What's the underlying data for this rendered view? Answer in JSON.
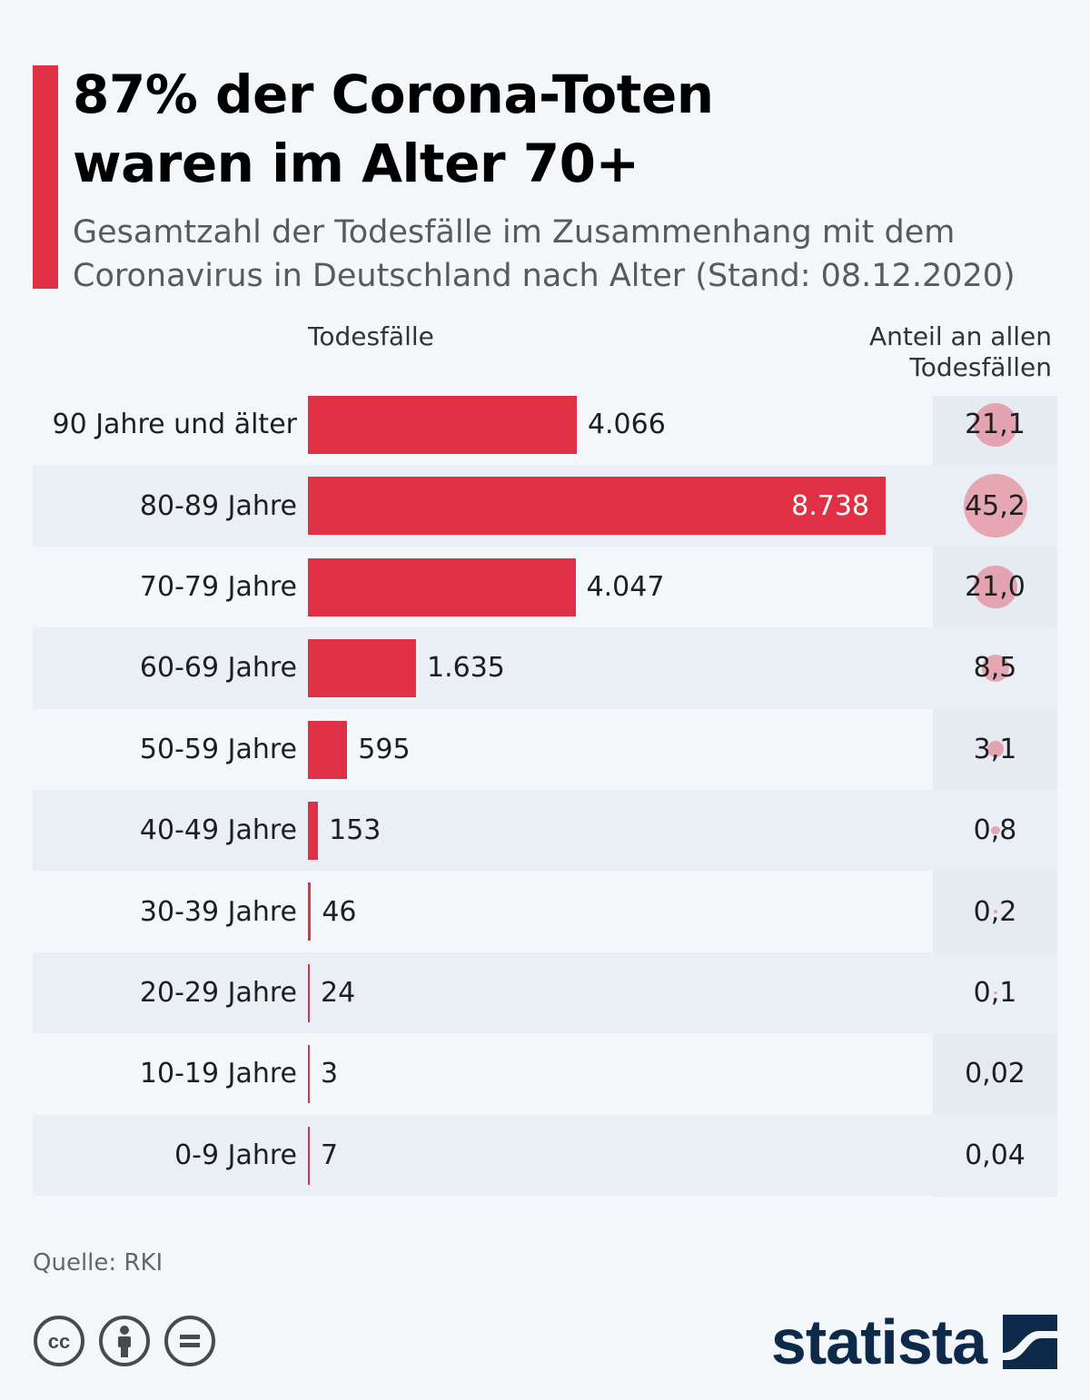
{
  "title_lines": [
    "87% der Corona-Toten",
    "waren im Alter 70+"
  ],
  "subtitle_lines": [
    "Gesamtzahl der Todesfälle im Zusammenhang mit dem",
    "Coronavirus in Deutschland nach Alter (Stand: 08.12.2020)"
  ],
  "columns": {
    "left": "Todesfälle",
    "right_lines": [
      "Anteil an allen",
      "Todesfällen"
    ]
  },
  "colors": {
    "accent": "#e03045",
    "bubble": "#e03045",
    "logo": "#0d2a4a"
  },
  "chart_data": {
    "type": "bar",
    "orientation": "horizontal",
    "title": "87% der Corona-Toten waren im Alter 70+",
    "subtitle": "Gesamtzahl der Todesfälle im Zusammenhang mit dem Coronavirus in Deutschland nach Alter (Stand: 08.12.2020)",
    "xlabel": "Todesfälle",
    "categories": [
      "90 Jahre und älter",
      "80-89 Jahre",
      "70-79 Jahre",
      "60-69 Jahre",
      "50-59 Jahre",
      "40-49 Jahre",
      "30-39 Jahre",
      "20-29 Jahre",
      "10-19 Jahre",
      "0-9 Jahre"
    ],
    "values": [
      4066,
      8738,
      4047,
      1635,
      595,
      153,
      46,
      24,
      3,
      7
    ],
    "value_labels": [
      "4.066",
      "8.738",
      "4.047",
      "1.635",
      "595",
      "153",
      "46",
      "24",
      "3",
      "7"
    ],
    "share_label": "Anteil an allen Todesfällen",
    "shares": [
      21.1,
      45.2,
      21.0,
      8.5,
      3.1,
      0.8,
      0.2,
      0.1,
      0.02,
      0.04
    ],
    "share_labels": [
      "21,1",
      "45,2",
      "21,0",
      "8,5",
      "3,1",
      "0,8",
      "0,2",
      "0,1",
      "0,02",
      "0,04"
    ],
    "xlim": [
      0,
      8738
    ]
  },
  "source": "Quelle: RKI",
  "license_icons": [
    "cc-icon",
    "by-icon",
    "nd-icon"
  ],
  "logo": {
    "text": "statista",
    "icon": "statista-logo-icon"
  }
}
